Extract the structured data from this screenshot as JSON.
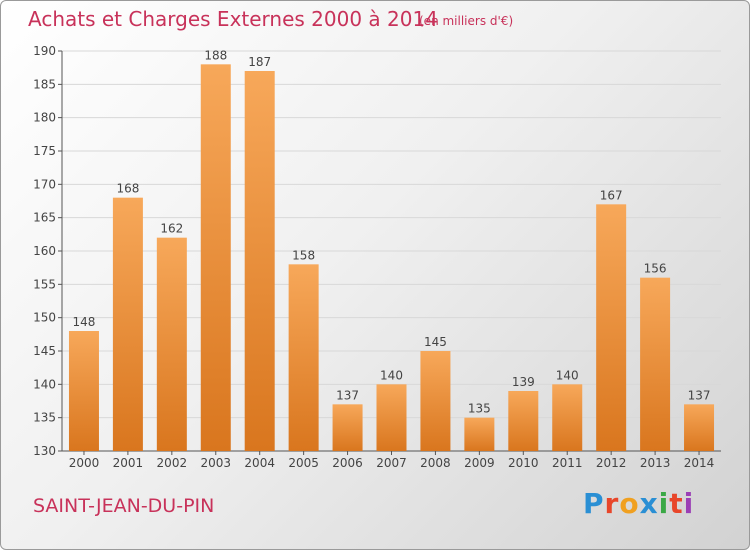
{
  "header": {
    "title": "Achats et Charges Externes 2000 à 2014",
    "unit": "(en milliers d'€)"
  },
  "footer": {
    "place": "SAINT-JEAN-DU-PIN",
    "logo": "Proxiti",
    "logo_colors": [
      "#2a8fd4",
      "#e8462a",
      "#f0a020",
      "#2a8fd4",
      "#3aa845",
      "#e8462a",
      "#9b3fb5"
    ]
  },
  "colors": {
    "bar_light": "#f7a85a",
    "bar_dark": "#d9761e",
    "text": "#444444",
    "grid": "#d8d8d8"
  },
  "chart_data": {
    "type": "bar",
    "title": "Achats et Charges Externes 2000 à 2014",
    "subtitle": "(en milliers d'€)",
    "categories": [
      "2000",
      "2001",
      "2002",
      "2003",
      "2004",
      "2005",
      "2006",
      "2007",
      "2008",
      "2009",
      "2010",
      "2011",
      "2012",
      "2013",
      "2014"
    ],
    "values": [
      148,
      168,
      162,
      188,
      187,
      158,
      137,
      140,
      145,
      135,
      139,
      140,
      167,
      156,
      137
    ],
    "ylim": [
      130,
      190
    ],
    "yticks": [
      130,
      135,
      140,
      145,
      150,
      155,
      160,
      165,
      170,
      175,
      180,
      185,
      190
    ],
    "grid": true,
    "legend": "none"
  }
}
